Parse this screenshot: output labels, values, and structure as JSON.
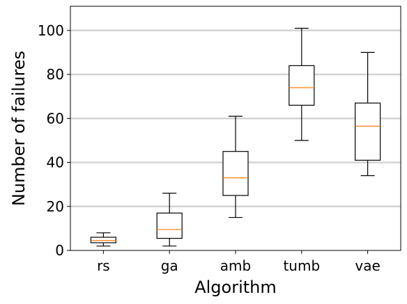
{
  "chart_data": {
    "type": "box",
    "categories": [
      "rs",
      "ga",
      "amb",
      "tumb",
      "vae"
    ],
    "boxes": [
      {
        "category": "rs",
        "whisker_low": 2,
        "q1": 3.5,
        "median": 4.5,
        "q3": 6,
        "whisker_high": 8
      },
      {
        "category": "ga",
        "whisker_low": 2,
        "q1": 5.5,
        "median": 9.5,
        "q3": 17,
        "whisker_high": 26
      },
      {
        "category": "amb",
        "whisker_low": 15,
        "q1": 25,
        "median": 33,
        "q3": 45,
        "whisker_high": 61
      },
      {
        "category": "tumb",
        "whisker_low": 50,
        "q1": 66,
        "median": 74,
        "q3": 84,
        "whisker_high": 101
      },
      {
        "category": "vae",
        "whisker_low": 34,
        "q1": 41,
        "median": 56.5,
        "q3": 67,
        "whisker_high": 90
      }
    ],
    "xlabel": "Algorithm",
    "ylabel": "Number of failures",
    "ylim": [
      0,
      111
    ],
    "yticks": [
      0,
      20,
      40,
      60,
      80,
      100
    ],
    "grid": "y",
    "colors": {
      "box": "#000000",
      "median": "#ff7f0e",
      "grid": "#d3d3d3"
    }
  }
}
